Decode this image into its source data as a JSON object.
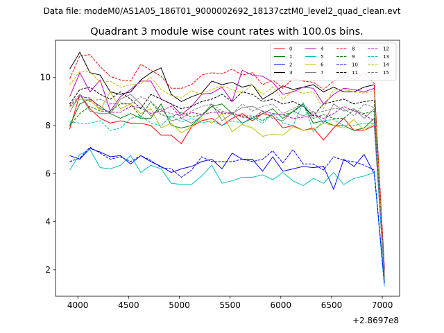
{
  "chart_data": {
    "type": "line",
    "suptitle": "Data file: modeM0/AS1A05_186T01_9000002692_18137cztM0_level2_quad_clean.evt",
    "title": "Quadrant 3 module wise count rates with 100.0s bins.",
    "xlabel": "",
    "ylabel": "",
    "x_offset_label": "+2.8697e8",
    "xlim": [
      3780,
      7170
    ],
    "ylim": [
      0.9,
      11.55
    ],
    "xticks": [
      4000,
      4500,
      5000,
      5500,
      6000,
      6500,
      7000
    ],
    "yticks": [
      2,
      4,
      6,
      8,
      10
    ],
    "grid": false,
    "legend": {
      "position": "top-right",
      "columns": 4
    },
    "x": [
      3920,
      4020,
      4120,
      4220,
      4320,
      4420,
      4520,
      4620,
      4720,
      4820,
      4920,
      5020,
      5120,
      5220,
      5320,
      5420,
      5520,
      5620,
      5720,
      5820,
      5920,
      6020,
      6120,
      6220,
      6320,
      6420,
      6520,
      6620,
      6720,
      6820,
      6920,
      7020
    ],
    "series": [
      {
        "name": "0",
        "color": "#ff0000",
        "dash": "solid",
        "values": [
          7.85,
          9.3,
          8.7,
          8.3,
          8.1,
          8.2,
          8.1,
          8.1,
          8.0,
          7.6,
          7.6,
          7.25,
          7.95,
          8.2,
          8.3,
          8.0,
          8.3,
          8.5,
          8.2,
          8.5,
          8.4,
          7.9,
          8.0,
          7.8,
          7.9,
          7.4,
          7.9,
          8.3,
          7.8,
          7.8,
          8.0,
          1.7
        ]
      },
      {
        "name": "1",
        "color": "#008000",
        "dash": "solid",
        "values": [
          8.0,
          8.9,
          9.1,
          8.8,
          8.5,
          8.3,
          8.5,
          8.3,
          8.3,
          8.9,
          8.0,
          7.9,
          8.0,
          8.4,
          8.8,
          8.9,
          8.5,
          8.1,
          8.3,
          8.5,
          8.7,
          8.3,
          8.6,
          8.9,
          8.1,
          8.2,
          8.0,
          8.0,
          7.8,
          7.9,
          8.3,
          1.8
        ]
      },
      {
        "name": "2",
        "color": "#0000ff",
        "dash": "solid",
        "values": [
          6.75,
          6.6,
          7.05,
          6.9,
          6.7,
          6.75,
          6.4,
          6.75,
          6.5,
          6.3,
          6.05,
          6.2,
          6.3,
          6.5,
          6.6,
          6.2,
          6.85,
          6.6,
          6.6,
          6.1,
          6.7,
          6.1,
          6.2,
          6.3,
          6.25,
          6.3,
          5.35,
          6.6,
          6.3,
          6.8,
          6.0,
          1.5
        ]
      },
      {
        "name": "3",
        "color": "#000000",
        "dash": "solid",
        "values": [
          10.35,
          11.05,
          10.2,
          10.1,
          9.4,
          9.3,
          9.4,
          9.9,
          10.2,
          10.4,
          9.3,
          9.0,
          9.2,
          9.35,
          9.85,
          9.7,
          9.8,
          9.6,
          9.7,
          9.1,
          9.35,
          9.65,
          9.5,
          9.6,
          9.7,
          9.4,
          9.6,
          9.4,
          9.4,
          9.6,
          9.7,
          2.0
        ]
      },
      {
        "name": "4",
        "color": "#bf00bf",
        "dash": "solid",
        "values": [
          9.2,
          10.2,
          9.4,
          9.9,
          8.6,
          9.2,
          9.5,
          9.85,
          9.85,
          9.1,
          8.9,
          8.45,
          8.8,
          9.3,
          9.35,
          9.6,
          9.0,
          10.3,
          10.1,
          10.05,
          9.8,
          9.3,
          9.4,
          9.6,
          9.55,
          8.9,
          9.3,
          9.55,
          9.5,
          9.4,
          9.55,
          2.0
        ]
      },
      {
        "name": "5",
        "color": "#00bfbf",
        "dash": "solid",
        "values": [
          6.15,
          6.8,
          7.0,
          6.25,
          6.2,
          6.35,
          6.75,
          6.05,
          6.35,
          6.2,
          5.6,
          5.55,
          5.55,
          5.9,
          6.35,
          5.6,
          5.7,
          5.85,
          5.85,
          5.95,
          5.75,
          6.05,
          5.7,
          5.5,
          5.8,
          5.6,
          6.05,
          5.55,
          5.8,
          5.9,
          6.05,
          1.3
        ]
      },
      {
        "name": "6",
        "color": "#bfbf00",
        "dash": "solid",
        "values": [
          8.75,
          9.1,
          9.05,
          8.65,
          9.4,
          8.7,
          8.9,
          8.5,
          8.7,
          7.9,
          8.1,
          7.7,
          7.95,
          8.3,
          8.1,
          8.5,
          7.75,
          8.05,
          7.9,
          7.55,
          7.65,
          7.6,
          7.95,
          7.8,
          7.85,
          8.1,
          8.0,
          7.9,
          8.25,
          7.8,
          8.1,
          1.7
        ]
      },
      {
        "name": "7",
        "color": "#808080",
        "dash": "solid",
        "values": [
          8.55,
          9.3,
          8.6,
          8.5,
          8.5,
          9.1,
          9.3,
          8.9,
          8.4,
          8.7,
          8.2,
          8.3,
          8.1,
          8.4,
          8.9,
          8.2,
          8.5,
          8.75,
          8.8,
          8.6,
          8.3,
          8.2,
          8.6,
          8.4,
          8.6,
          8.1,
          8.9,
          8.6,
          8.7,
          8.3,
          8.7,
          1.8
        ]
      },
      {
        "name": "8",
        "color": "#ff0000",
        "dash": "dashed",
        "values": [
          9.95,
          10.9,
          10.95,
          10.45,
          10.05,
          9.9,
          9.85,
          10.55,
          10.3,
          10.05,
          9.55,
          9.55,
          9.7,
          10.1,
          10.2,
          10.15,
          10.35,
          10.1,
          10.2,
          9.7,
          9.9,
          9.55,
          9.95,
          9.85,
          9.8,
          9.5,
          9.85,
          10.1,
          9.9,
          10.2,
          9.75,
          2.1
        ]
      },
      {
        "name": "9",
        "color": "#008000",
        "dash": "dashed",
        "values": [
          8.0,
          8.5,
          8.8,
          8.6,
          8.6,
          8.9,
          8.9,
          8.35,
          9.0,
          8.45,
          8.35,
          8.55,
          8.35,
          8.45,
          8.8,
          8.5,
          8.5,
          8.4,
          8.4,
          8.2,
          8.5,
          8.45,
          8.55,
          8.9,
          8.3,
          8.45,
          8.3,
          8.3,
          8.65,
          8.5,
          8.6,
          1.7
        ]
      },
      {
        "name": "10",
        "color": "#0000ff",
        "dash": "dashed",
        "values": [
          6.5,
          6.65,
          7.1,
          6.85,
          6.6,
          6.7,
          6.5,
          6.75,
          6.55,
          6.25,
          6.2,
          5.85,
          6.15,
          6.7,
          6.5,
          6.5,
          6.5,
          6.6,
          6.5,
          6.6,
          6.95,
          6.45,
          7.0,
          6.4,
          6.4,
          6.15,
          6.7,
          6.55,
          6.5,
          6.35,
          6.15,
          1.4
        ]
      },
      {
        "name": "11",
        "color": "#000000",
        "dash": "dashed",
        "values": [
          8.9,
          9.5,
          9.6,
          9.3,
          9.1,
          9.4,
          9.1,
          8.7,
          9.3,
          9.1,
          8.9,
          8.7,
          8.8,
          9.0,
          9.1,
          9.3,
          9.0,
          9.4,
          9.3,
          9.0,
          9.1,
          8.9,
          9.0,
          8.8,
          8.4,
          8.9,
          9.0,
          9.1,
          8.9,
          9.0,
          9.05,
          1.9
        ]
      },
      {
        "name": "12",
        "color": "#bf00bf",
        "dash": "dashed",
        "values": [
          8.8,
          9.2,
          9.15,
          8.7,
          8.55,
          8.55,
          8.8,
          8.75,
          8.5,
          8.6,
          8.8,
          8.3,
          8.55,
          8.45,
          8.55,
          8.55,
          8.55,
          8.35,
          8.3,
          8.6,
          8.5,
          8.45,
          8.3,
          8.35,
          8.45,
          8.3,
          8.5,
          8.8,
          8.6,
          8.45,
          8.2,
          1.8
        ]
      },
      {
        "name": "13",
        "color": "#00bfbf",
        "dash": "dashed",
        "values": [
          8.15,
          8.1,
          8.1,
          8.2,
          7.8,
          7.9,
          8.3,
          8.4,
          8.1,
          8.0,
          8.4,
          8.15,
          8.3,
          8.1,
          8.2,
          8.0,
          8.2,
          8.1,
          8.35,
          8.1,
          8.5,
          8.1,
          8.0,
          8.95,
          7.75,
          8.2,
          8.25,
          8.0,
          8.0,
          8.1,
          8.1,
          1.6
        ]
      },
      {
        "name": "14",
        "color": "#bfbf00",
        "dash": "dashed",
        "values": [
          9.7,
          10.25,
          10.25,
          9.8,
          9.85,
          9.6,
          9.7,
          9.75,
          10.0,
          9.5,
          9.25,
          9.15,
          9.45,
          9.3,
          9.5,
          9.65,
          9.5,
          9.35,
          9.7,
          9.3,
          9.6,
          9.1,
          9.45,
          9.35,
          9.4,
          8.7,
          9.5,
          9.5,
          9.4,
          9.35,
          9.45,
          1.8
        ]
      },
      {
        "name": "15",
        "color": "#808080",
        "dash": "dashed",
        "values": [
          8.85,
          9.3,
          9.0,
          9.1,
          8.9,
          8.95,
          8.9,
          9.2,
          9.0,
          8.6,
          8.5,
          8.4,
          8.6,
          8.8,
          8.9,
          8.6,
          8.5,
          8.9,
          8.6,
          8.8,
          8.9,
          8.5,
          8.7,
          8.9,
          8.5,
          8.6,
          8.7,
          8.7,
          8.4,
          8.9,
          8.75,
          1.8
        ]
      }
    ]
  }
}
